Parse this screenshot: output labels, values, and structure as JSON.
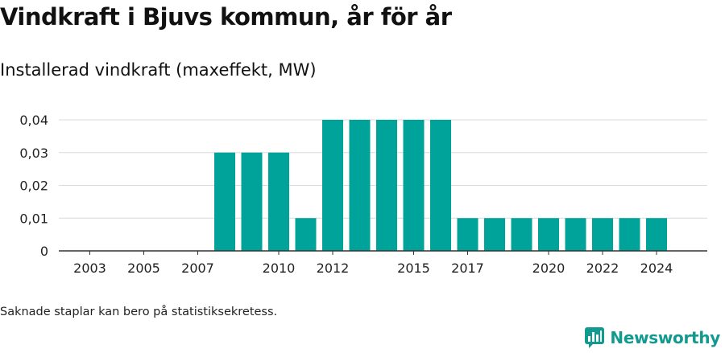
{
  "colors": {
    "bar": "#00a39a",
    "brand": "#129a8f",
    "grid": "#d9d9d9",
    "axis": "#333333"
  },
  "footnote": "Saknade staplar kan bero på statistiksekretess.",
  "brand": {
    "name": "Newsworthy",
    "icon": "bar-chart-speech-bubble-icon"
  },
  "chart_data": {
    "type": "bar",
    "title": "Vindkraft i Bjuvs kommun, år för år",
    "subtitle": "Installerad vindkraft (maxeffekt, MW)",
    "xlabel": "",
    "ylabel": "",
    "ylim": [
      0,
      0.04
    ],
    "yticks": [
      "0",
      "0,01",
      "0,02",
      "0,03",
      "0,04"
    ],
    "grid": true,
    "categories": [
      "2003",
      "2004",
      "2005",
      "2006",
      "2007",
      "2008",
      "2009",
      "2010",
      "2011",
      "2012",
      "2013",
      "2014",
      "2015",
      "2016",
      "2017",
      "2018",
      "2019",
      "2020",
      "2021",
      "2022",
      "2023",
      "2024"
    ],
    "xtick_labels": [
      "2003",
      "2005",
      "2007",
      "2010",
      "2012",
      "2015",
      "2017",
      "2020",
      "2022",
      "2024"
    ],
    "values": [
      0,
      0,
      0,
      0,
      0,
      0.03,
      0.03,
      0.03,
      0.01,
      0.04,
      0.04,
      0.04,
      0.04,
      0.04,
      0.01,
      0.01,
      0.01,
      0.01,
      0.01,
      0.01,
      0.01,
      0.01
    ]
  }
}
